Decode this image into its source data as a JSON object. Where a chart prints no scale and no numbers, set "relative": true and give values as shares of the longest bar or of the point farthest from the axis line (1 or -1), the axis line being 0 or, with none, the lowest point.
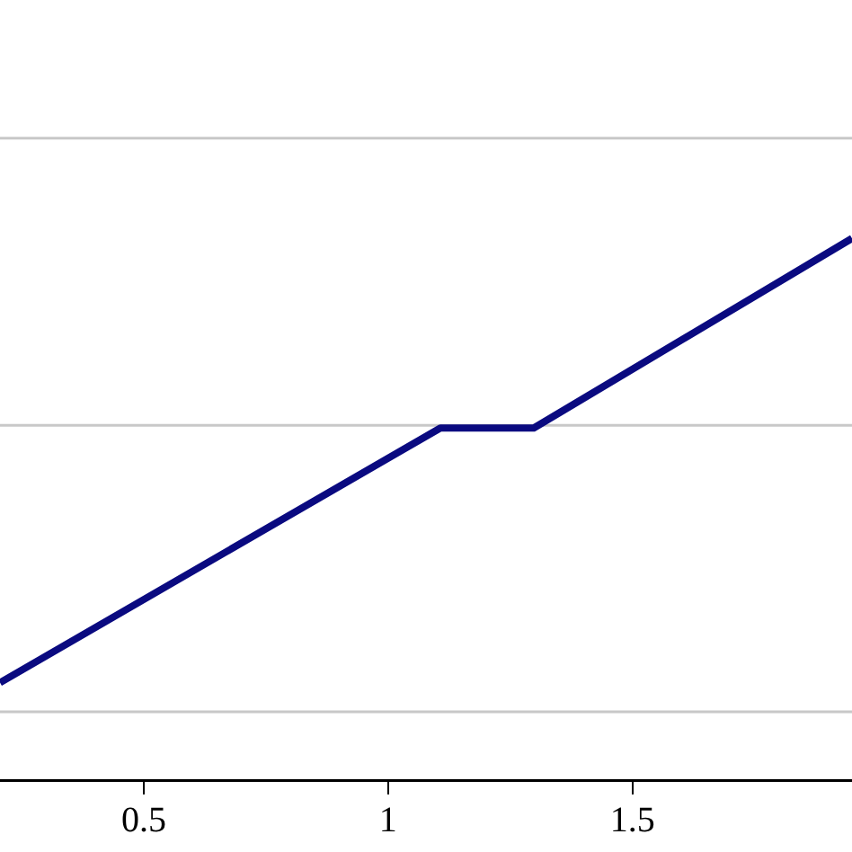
{
  "chart_data": {
    "type": "line",
    "relative": true,
    "x": [
      0.206,
      1.107,
      1.298,
      1.949
    ],
    "series": [
      {
        "color": "#0a0a80",
        "values": [
          0.18,
          0.65,
          0.65,
          1
        ]
      }
    ],
    "xlim": [
      0.206,
      1.949
    ],
    "xticks": [
      0.5,
      1,
      1.5
    ],
    "ref_lines": [
      {
        "axis": "y",
        "value": 0.126,
        "color": "#c8c8c8"
      },
      {
        "axis": "y",
        "value": 0.655,
        "color": "#c8c8c8"
      },
      {
        "axis": "y",
        "value": 1.185,
        "color": "#c8c8c8"
      }
    ],
    "marker": "none",
    "line_style": "solid",
    "legend": false,
    "tick_labels": "x"
  }
}
